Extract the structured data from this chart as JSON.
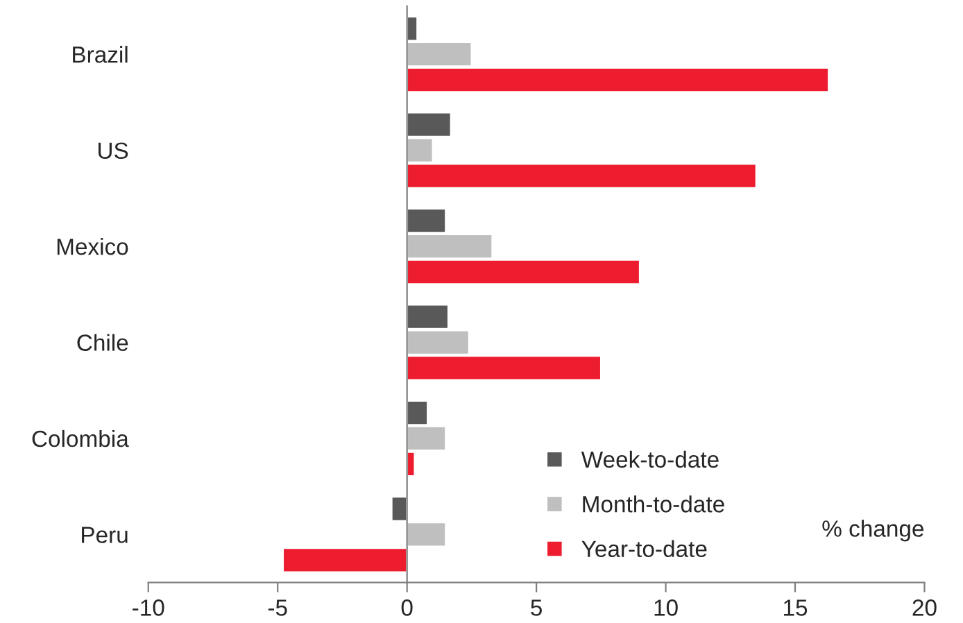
{
  "chart_data": {
    "type": "bar",
    "orientation": "horizontal",
    "categories": [
      "Brazil",
      "US",
      "Mexico",
      "Chile",
      "Colombia",
      "Peru"
    ],
    "series": [
      {
        "name": "Week-to-date",
        "color": "#595959",
        "values": [
          0.4,
          1.7,
          1.5,
          1.6,
          0.8,
          -0.6
        ]
      },
      {
        "name": "Month-to-date",
        "color": "#bfbfbf",
        "values": [
          2.5,
          1.0,
          3.3,
          2.4,
          1.5,
          1.5
        ]
      },
      {
        "name": "Year-to-date",
        "color": "#ed1c2e",
        "values": [
          16.3,
          13.5,
          9.0,
          7.5,
          0.3,
          -4.8
        ]
      }
    ],
    "xlim": [
      -10,
      20
    ],
    "xticks": [
      -10,
      -5,
      0,
      5,
      10,
      15,
      20
    ],
    "legend": "bottom right",
    "annotations": [
      "% change"
    ]
  }
}
